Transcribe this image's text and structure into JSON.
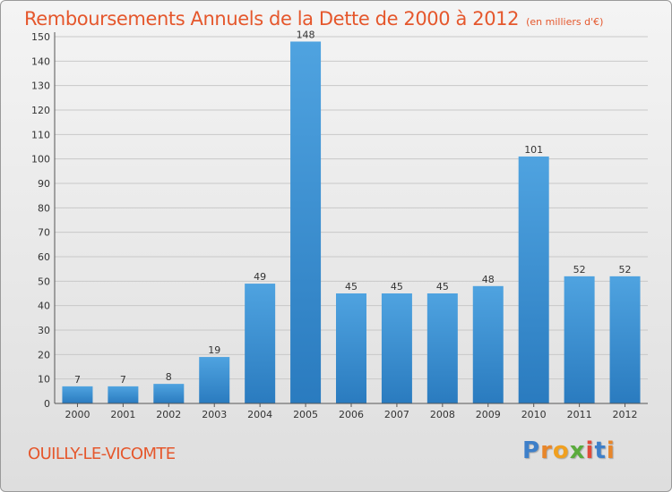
{
  "chart_data": {
    "type": "bar",
    "title": "Remboursements Annuels de la Dette de 2000 à 2012",
    "unit_note": "(en milliers d'€)",
    "categories": [
      "2000",
      "2001",
      "2002",
      "2003",
      "2004",
      "2005",
      "2006",
      "2007",
      "2008",
      "2009",
      "2010",
      "2011",
      "2012"
    ],
    "values": [
      7,
      7,
      8,
      19,
      49,
      148,
      45,
      45,
      45,
      48,
      101,
      52,
      52
    ],
    "ylim": [
      0,
      150
    ],
    "yticks": [
      0,
      10,
      20,
      30,
      40,
      50,
      60,
      70,
      80,
      90,
      100,
      110,
      120,
      130,
      140,
      150
    ],
    "xlabel": "",
    "ylabel": "",
    "grid": true,
    "bar_color": "#4fa3e0",
    "bar_color_dark": "#2a7bbf"
  },
  "commune": "OUILLY-LE-VICOMTE",
  "brand": {
    "letters": [
      "P",
      "r",
      "o",
      "x",
      "i",
      "t",
      "i"
    ],
    "colors": [
      "#3d7fc9",
      "#e8862a",
      "#f0a020",
      "#5aab3c",
      "#e04a3a",
      "#3d7fc9",
      "#e8862a"
    ]
  },
  "colors": {
    "accent": "#e5572c"
  }
}
